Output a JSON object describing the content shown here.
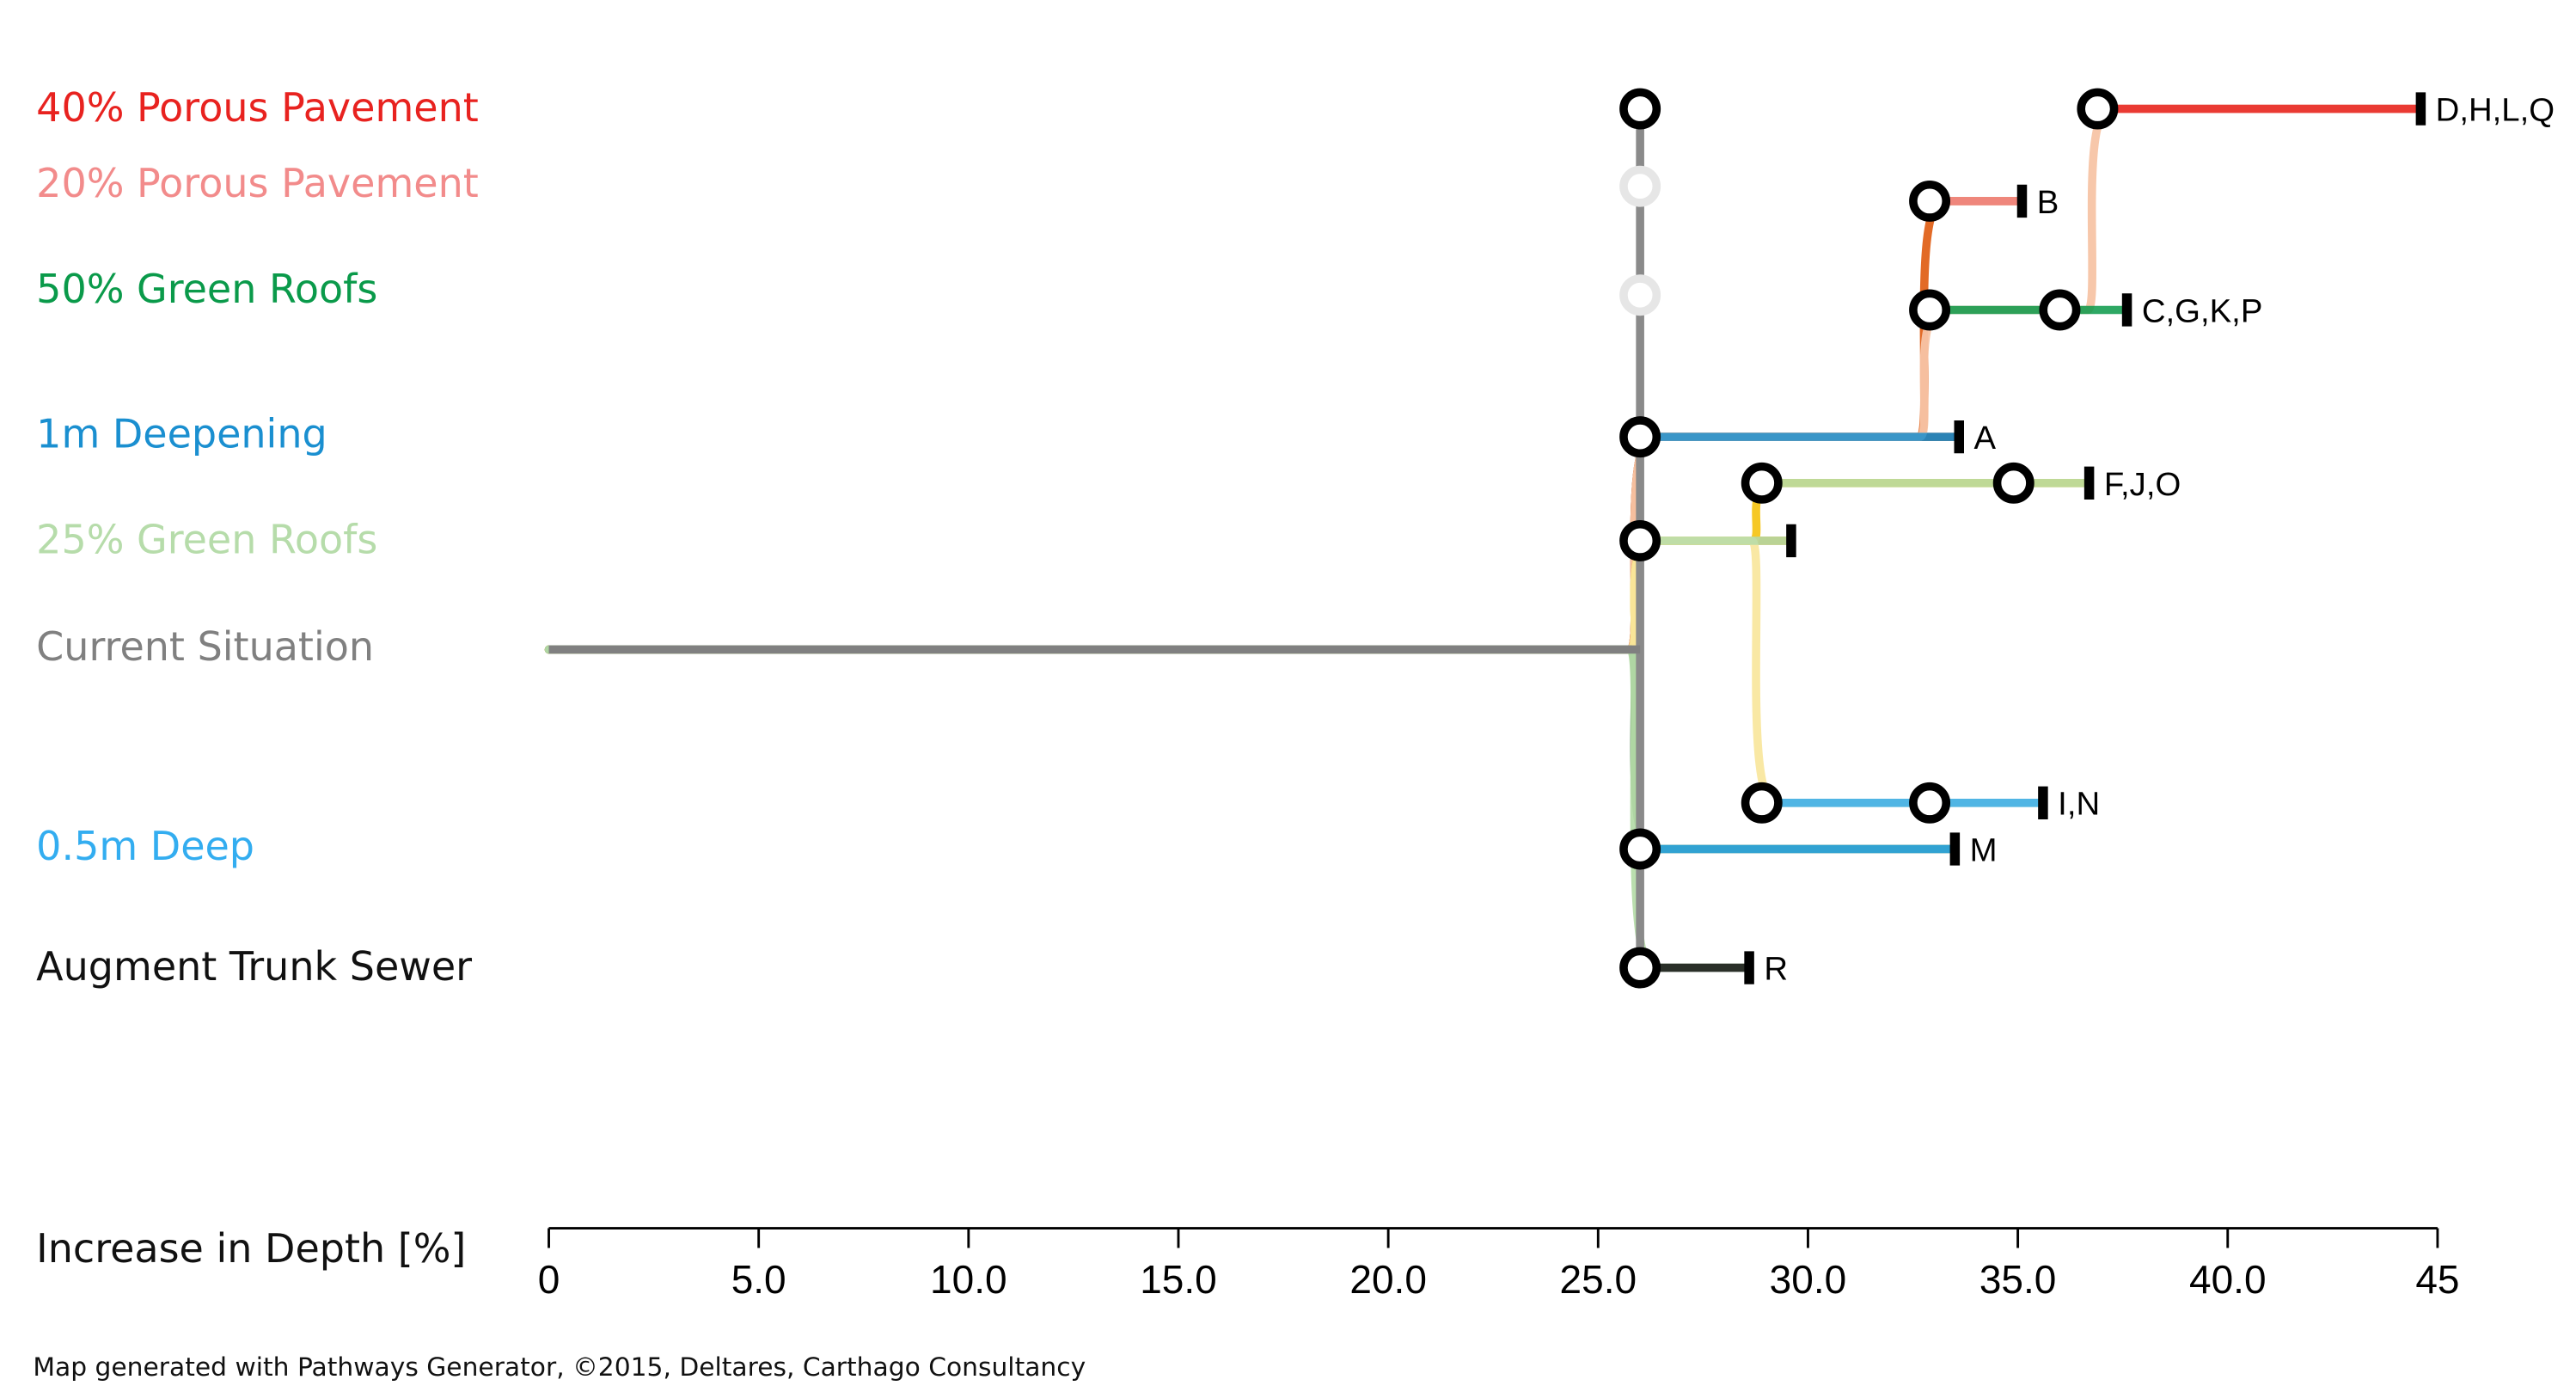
{
  "chart_data": {
    "type": "pathways",
    "x_label": "Increase in Depth [%]",
    "footer": "Map generated with Pathways Generator, ©2015, Deltares, Carthago Consultancy",
    "xlim": [
      0,
      45
    ],
    "xticks": [
      0,
      {
        "value": 5,
        "label": "5.0"
      },
      {
        "value": 10,
        "label": "10.0"
      },
      {
        "value": 15,
        "label": "15.0"
      },
      {
        "value": 20,
        "label": "20.0"
      },
      {
        "value": 25,
        "label": "25.0"
      },
      {
        "value": 30,
        "label": "30.0"
      },
      {
        "value": 35,
        "label": "35.0"
      },
      {
        "value": 40,
        "label": "40.0"
      },
      45
    ],
    "measures": [
      {
        "name": "40% Porous Pavement",
        "color": "#e8221f"
      },
      {
        "name": "20% Porous Pavement",
        "color": "#f28b8b"
      },
      {
        "name": "50% Green Roofs",
        "color": "#0a9a4a"
      },
      {
        "name": "1m Deepening",
        "color": "#1a8fd0"
      },
      {
        "name": "25% Green Roofs",
        "color": "#b6dcaa"
      },
      {
        "name": "Current Situation",
        "color": "#808080"
      },
      {
        "name": "0.5m Deep",
        "color": "#33adf0"
      },
      {
        "name": "Augment Trunk Sewer",
        "color": "#111111"
      }
    ],
    "segments": [
      {
        "measure": 5,
        "from": 0,
        "to": 26
      },
      {
        "measure": 3,
        "from": 26,
        "to": 33.6,
        "label": "A"
      },
      {
        "measure": 1,
        "from": 32.9,
        "to": 35.1,
        "label": "B"
      },
      {
        "measure": 2,
        "from": 32.9,
        "to": 37.6,
        "label": "C,G,K,P"
      },
      {
        "measure": 0,
        "from": 36.9,
        "to": 44.6,
        "label": "D,H,L,Q"
      },
      {
        "measure": 4,
        "from": 26,
        "to": 29.6
      },
      {
        "measure": 4,
        "from": 28.9,
        "to": 36.7,
        "label": "F,J,O"
      },
      {
        "measure": 6,
        "from": 28.9,
        "to": 35.6,
        "label": "I,N"
      },
      {
        "measure": 6,
        "from": 26,
        "to": 33.5,
        "label": "M"
      },
      {
        "measure": 7,
        "from": 26,
        "to": 28.6,
        "label": "R"
      }
    ],
    "nodes": [
      {
        "segment": 4,
        "x": 26,
        "active": true
      },
      {
        "segment": 2,
        "x": 26,
        "active": false
      },
      {
        "segment": 3,
        "x": 26,
        "active": false
      },
      {
        "segment": 3,
        "x": 36,
        "active": true
      },
      {
        "segment": 6,
        "x": 34.9,
        "active": true
      },
      {
        "segment": 7,
        "x": 32.9,
        "active": true
      }
    ],
    "routes": [
      {
        "color": "#8b3a0f",
        "segments": [
          0,
          1
        ]
      },
      {
        "color": "#e0621a",
        "segments": [
          0,
          1,
          2
        ]
      },
      {
        "color": "#f7c4a5",
        "segments": [
          0,
          1,
          3,
          4
        ]
      },
      {
        "color": "#d4a017",
        "segments": [
          0,
          5
        ]
      },
      {
        "color": "#f5c518",
        "segments": [
          0,
          5,
          6
        ]
      },
      {
        "color": "#f9e79f",
        "segments": [
          0,
          5,
          7
        ]
      },
      {
        "color": "#1f5f1f",
        "segments": [
          0,
          8
        ]
      },
      {
        "color": "#b6dcaa",
        "segments": [
          0,
          9
        ]
      }
    ]
  }
}
